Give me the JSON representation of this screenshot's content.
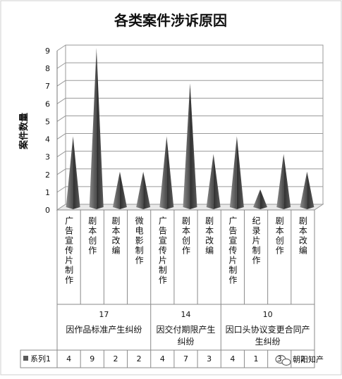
{
  "chart_data": {
    "type": "bar",
    "title": "各类案件涉诉原因",
    "ylabel": "案件数量",
    "xlabel": "",
    "ylim": [
      0,
      9
    ],
    "y_ticks": [
      0,
      1,
      2,
      3,
      4,
      5,
      6,
      7,
      8,
      9
    ],
    "grid": true,
    "legend": "table-bottom-left",
    "mark_shape": "cone",
    "bar_color": "#5a5a5a",
    "categories": [
      "广告宣传片制作",
      "剧本创作",
      "剧本改编",
      "微电影制作",
      "广告宣传片制作",
      "剧本创作",
      "剧本改编",
      "广告宣传片制作",
      "纪录片制作",
      "剧本创作",
      "剧本改编"
    ],
    "groups": [
      {
        "label": "因作品标准产生纠纷",
        "total": 17,
        "span": 4
      },
      {
        "label": "因交付期限产生纠纷",
        "total": 14,
        "span": 3
      },
      {
        "label": "因口头协议变更合同产生纠纷",
        "total": 10,
        "span": 4
      }
    ],
    "series": [
      {
        "name": "系列1",
        "values": [
          4,
          9,
          2,
          2,
          4,
          7,
          3,
          4,
          1,
          3,
          2
        ]
      }
    ]
  },
  "watermark": "朝阳知产"
}
